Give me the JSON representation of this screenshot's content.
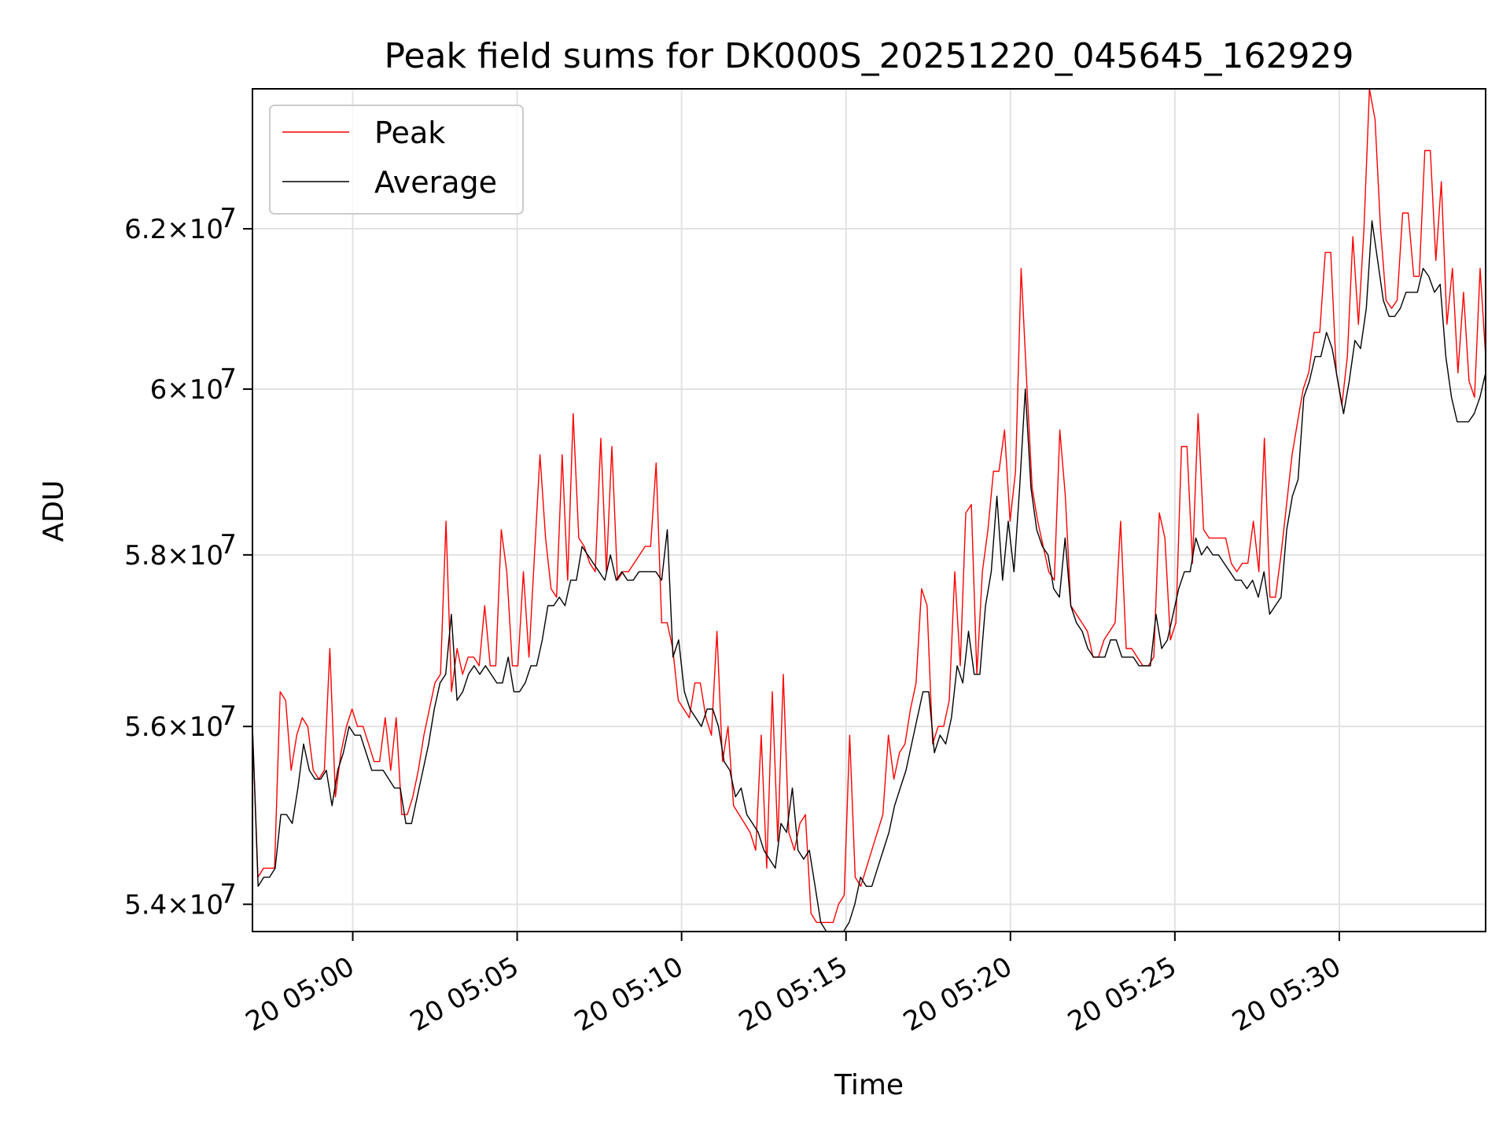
{
  "chart_data": {
    "type": "line",
    "title": "Peak field sums for DK000S_20251220_045645_162929",
    "xlabel": "Time",
    "ylabel": "ADU",
    "y_scale": "log",
    "ylim": [
      53700000,
      63800000
    ],
    "xlim_minutes": [
      296.95,
      334.45
    ],
    "x_ticks": [
      {
        "label": "20 05:00",
        "minute": 300
      },
      {
        "label": "20 05:05",
        "minute": 305
      },
      {
        "label": "20 05:10",
        "minute": 310
      },
      {
        "label": "20 05:15",
        "minute": 315
      },
      {
        "label": "20 05:20",
        "minute": 320
      },
      {
        "label": "20 05:25",
        "minute": 325
      },
      {
        "label": "20 05:30",
        "minute": 330
      }
    ],
    "y_ticks": [
      {
        "value": 54000000,
        "mantissa": "5.4",
        "exp": "7"
      },
      {
        "value": 56000000,
        "mantissa": "5.6",
        "exp": "7"
      },
      {
        "value": 58000000,
        "mantissa": "5.8",
        "exp": "7"
      },
      {
        "value": 60000000,
        "mantissa": "6",
        "exp": "7"
      },
      {
        "value": 62000000,
        "mantissa": "6.2",
        "exp": "7"
      }
    ],
    "grid": true,
    "legend_position": "top-left",
    "x_start_minute": 296.95,
    "x_end_minute": 334.45,
    "series": [
      {
        "name": "Peak",
        "color": "#ff0000",
        "values": [
          56.0,
          54.3,
          54.4,
          54.4,
          54.4,
          56.4,
          56.3,
          55.5,
          55.9,
          56.1,
          56.0,
          55.5,
          55.4,
          55.5,
          56.9,
          55.2,
          55.7,
          56.0,
          56.2,
          56.0,
          56.0,
          55.8,
          55.6,
          55.6,
          56.1,
          55.5,
          56.1,
          55.0,
          55.0,
          55.2,
          55.5,
          55.9,
          56.2,
          56.5,
          56.6,
          58.4,
          56.4,
          56.9,
          56.6,
          56.8,
          56.8,
          56.7,
          57.4,
          56.7,
          56.7,
          58.3,
          57.8,
          56.7,
          56.7,
          57.8,
          56.8,
          58.0,
          59.2,
          58.2,
          57.6,
          57.5,
          59.2,
          57.7,
          59.7,
          58.2,
          58.1,
          57.9,
          57.8,
          59.4,
          57.8,
          59.3,
          57.7,
          57.8,
          57.8,
          57.9,
          58.0,
          58.1,
          58.1,
          59.1,
          57.2,
          57.2,
          56.9,
          56.3,
          56.2,
          56.1,
          56.5,
          56.5,
          56.1,
          55.9,
          57.1,
          55.6,
          56.0,
          55.1,
          55.0,
          54.9,
          54.8,
          54.6,
          55.9,
          54.4,
          56.4,
          54.7,
          56.6,
          54.8,
          54.6,
          54.9,
          55.0,
          53.9,
          53.8,
          53.8,
          53.8,
          53.8,
          54.0,
          54.1,
          55.9,
          54.3,
          54.2,
          54.4,
          54.6,
          54.8,
          55.0,
          55.9,
          55.4,
          55.7,
          55.8,
          56.2,
          56.5,
          57.6,
          57.4,
          55.8,
          56.0,
          56.0,
          56.3,
          57.8,
          56.7,
          58.5,
          58.6,
          56.6,
          57.8,
          58.3,
          59.0,
          59.0,
          59.5,
          58.4,
          59.0,
          61.5,
          60.1,
          58.8,
          58.4,
          58.1,
          57.8,
          57.7,
          59.5,
          58.7,
          57.4,
          57.3,
          57.2,
          57.1,
          56.8,
          56.8,
          57.0,
          57.1,
          57.2,
          58.4,
          56.9,
          56.9,
          56.8,
          56.7,
          56.7,
          56.8,
          58.5,
          58.2,
          57.0,
          57.2,
          59.3,
          59.3,
          57.9,
          59.7,
          58.3,
          58.2,
          58.2,
          58.2,
          58.2,
          57.9,
          57.8,
          57.9,
          57.9,
          58.4,
          57.8,
          59.4,
          57.5,
          57.5,
          58.0,
          58.6,
          59.2,
          59.6,
          60.0,
          60.2,
          60.7,
          60.7,
          61.7,
          61.7,
          60.2,
          59.8,
          60.4,
          61.9,
          60.8,
          62.0,
          63.8,
          63.4,
          62.0,
          61.1,
          61.0,
          61.1,
          62.2,
          62.2,
          61.4,
          61.4,
          63.0,
          63.0,
          61.6,
          62.6,
          60.8,
          61.5,
          60.2,
          61.2,
          60.1,
          59.9,
          61.5,
          60.4
        ]
      },
      {
        "name": "Average",
        "color": "#000000",
        "values": [
          56.0,
          54.2,
          54.3,
          54.3,
          54.4,
          55.0,
          55.0,
          54.9,
          55.3,
          55.8,
          55.5,
          55.4,
          55.4,
          55.5,
          55.1,
          55.5,
          55.7,
          56.0,
          55.9,
          55.9,
          55.7,
          55.5,
          55.5,
          55.5,
          55.4,
          55.3,
          55.3,
          54.9,
          54.9,
          55.2,
          55.5,
          55.8,
          56.2,
          56.5,
          56.6,
          57.3,
          56.3,
          56.4,
          56.6,
          56.7,
          56.6,
          56.7,
          56.6,
          56.5,
          56.5,
          56.8,
          56.4,
          56.4,
          56.5,
          56.7,
          56.7,
          57.0,
          57.4,
          57.4,
          57.5,
          57.4,
          57.7,
          57.7,
          58.1,
          58.0,
          57.9,
          57.8,
          57.7,
          58.0,
          57.7,
          57.8,
          57.7,
          57.7,
          57.8,
          57.8,
          57.8,
          57.8,
          57.7,
          58.3,
          56.8,
          57.0,
          56.4,
          56.2,
          56.1,
          56.0,
          56.2,
          56.2,
          56.0,
          55.6,
          55.5,
          55.2,
          55.3,
          55.0,
          54.9,
          54.8,
          54.6,
          54.5,
          54.4,
          54.9,
          54.8,
          55.3,
          54.6,
          54.5,
          54.6,
          54.2,
          53.8,
          53.7,
          53.7,
          53.7,
          53.7,
          53.8,
          54.0,
          54.3,
          54.2,
          54.2,
          54.4,
          54.6,
          54.8,
          55.1,
          55.3,
          55.5,
          55.8,
          56.1,
          56.4,
          56.4,
          55.7,
          55.9,
          55.8,
          56.1,
          56.7,
          56.5,
          57.1,
          56.6,
          56.6,
          57.4,
          57.8,
          58.7,
          57.7,
          58.4,
          57.8,
          58.8,
          60.0,
          58.8,
          58.3,
          58.1,
          58.0,
          57.6,
          57.5,
          58.2,
          57.4,
          57.2,
          57.1,
          56.9,
          56.8,
          56.8,
          56.8,
          57.0,
          57.0,
          56.8,
          56.8,
          56.8,
          56.7,
          56.7,
          56.7,
          57.3,
          56.9,
          57.0,
          57.3,
          57.6,
          57.8,
          57.8,
          58.2,
          58.0,
          58.1,
          58.0,
          58.0,
          57.9,
          57.8,
          57.7,
          57.7,
          57.6,
          57.7,
          57.5,
          57.8,
          57.3,
          57.4,
          57.5,
          58.3,
          58.7,
          58.9,
          59.9,
          60.1,
          60.4,
          60.4,
          60.7,
          60.5,
          60.1,
          59.7,
          60.1,
          60.6,
          60.5,
          61.0,
          62.1,
          61.6,
          61.1,
          60.9,
          60.9,
          61.0,
          61.2,
          61.2,
          61.2,
          61.5,
          61.4,
          61.2,
          61.3,
          60.4,
          59.9,
          59.6,
          59.6,
          59.6,
          59.7,
          59.9,
          60.2
        ]
      }
    ]
  }
}
